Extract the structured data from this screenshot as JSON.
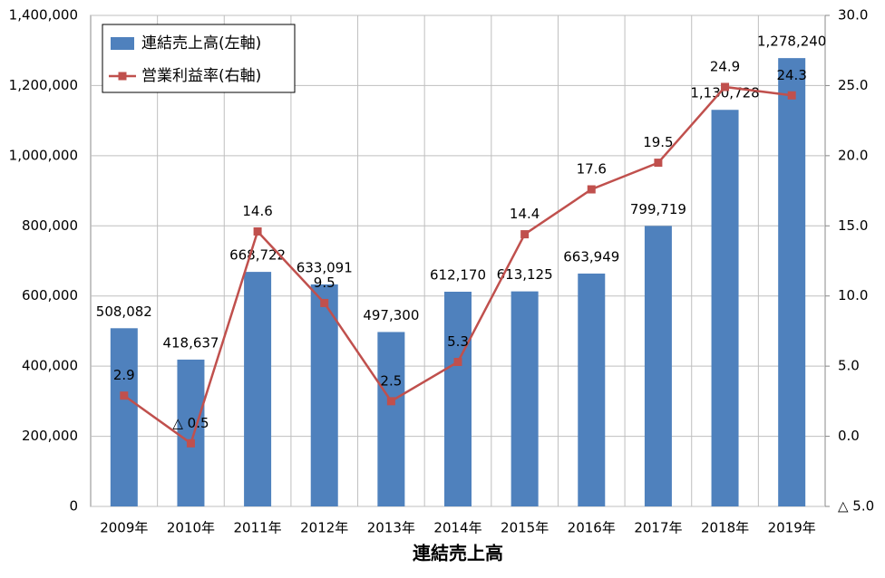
{
  "chart_data": {
    "type": "bar_line",
    "x_title": "連結売上高",
    "categories": [
      "2009年",
      "2010年",
      "2011年",
      "2012年",
      "2013年",
      "2014年",
      "2015年",
      "2016年",
      "2017年",
      "2018年",
      "2019年"
    ],
    "series": [
      {
        "name": "連結売上高(左軸)",
        "type": "bar",
        "color": "#4f81bd",
        "values": [
          508082,
          418637,
          668722,
          633091,
          497300,
          612170,
          613125,
          663949,
          799719,
          1130728,
          1278240
        ],
        "value_labels": [
          "508,082",
          "418,637",
          "668,722",
          "633,091",
          "497,300",
          "612,170",
          "613,125",
          "663,949",
          "799,719",
          "1,130,728",
          "1,278,240"
        ]
      },
      {
        "name": "営業利益率(右軸)",
        "type": "line",
        "axis": "y2",
        "color": "#c0504d",
        "values": [
          2.9,
          -0.5,
          14.6,
          9.5,
          2.5,
          5.3,
          14.4,
          17.6,
          19.5,
          24.9,
          24.3
        ],
        "value_labels": [
          "2.9",
          "△ 0.5",
          "14.6",
          "9.5",
          "2.5",
          "5.3",
          "14.4",
          "17.6",
          "19.5",
          "24.9",
          "24.3"
        ]
      }
    ],
    "ylim": [
      0,
      1400000
    ],
    "yticks": [
      0,
      {
        "value": 200000,
        "label": "200,000"
      },
      {
        "value": 400000,
        "label": "400,000"
      },
      {
        "value": 600000,
        "label": "600,000"
      },
      {
        "value": 800000,
        "label": "800,000"
      },
      {
        "value": 1000000,
        "label": "1,000,000"
      },
      {
        "value": 1200000,
        "label": "1,200,000"
      },
      {
        "value": 1400000,
        "label": "1,400,000"
      }
    ],
    "y2lim": [
      -5,
      30
    ],
    "y2ticks": [
      {
        "value": -5,
        "label": "△ 5.0"
      },
      {
        "value": 0,
        "label": "0.0"
      },
      {
        "value": 5,
        "label": "5.0"
      },
      {
        "value": 10,
        "label": "10.0"
      },
      {
        "value": 15,
        "label": "15.0"
      },
      {
        "value": 20,
        "label": "20.0"
      },
      {
        "value": 25,
        "label": "25.0"
      },
      {
        "value": 30,
        "label": "30.0"
      }
    ],
    "grid": true,
    "legend": "top-left"
  }
}
